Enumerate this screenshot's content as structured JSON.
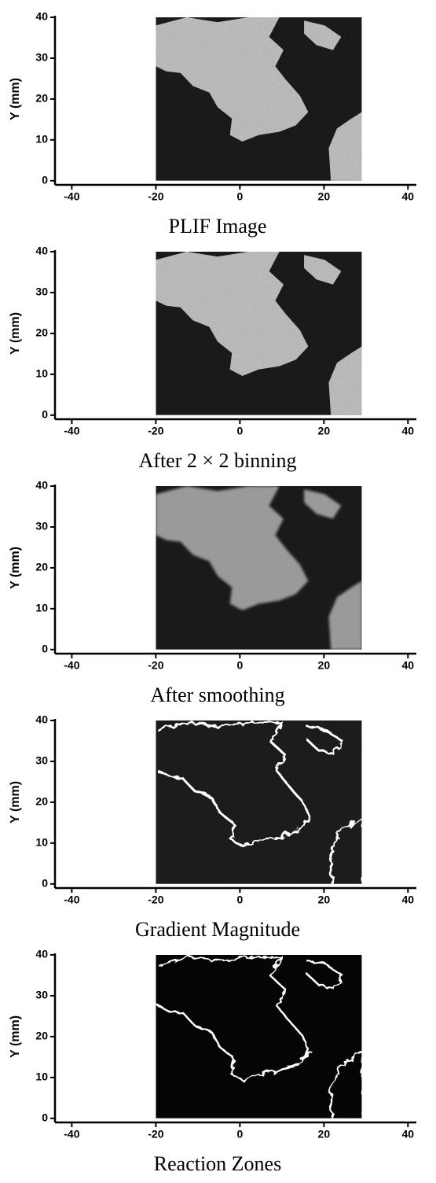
{
  "chart_data": [
    {
      "type": "image",
      "title": "PLIF Image",
      "y_label": "Y (mm)",
      "xlim": [
        -44,
        42
      ],
      "ylim": [
        -1,
        40
      ],
      "xticks": [
        -40,
        -20,
        0,
        20,
        40
      ],
      "yticks": [
        0,
        10,
        20,
        30,
        40
      ],
      "extent": [
        -20,
        29,
        0,
        40
      ],
      "style": "intensity"
    },
    {
      "type": "image",
      "title": "After 2 × 2 binning",
      "y_label": "Y (mm)",
      "xlim": [
        -44,
        42
      ],
      "ylim": [
        -1,
        40
      ],
      "xticks": [
        -40,
        -20,
        0,
        20,
        40
      ],
      "yticks": [
        0,
        10,
        20,
        30,
        40
      ],
      "extent": [
        -20,
        29,
        0,
        40
      ],
      "style": "intensity"
    },
    {
      "type": "image",
      "title": "After smoothing",
      "y_label": "Y (mm)",
      "xlim": [
        -44,
        42
      ],
      "ylim": [
        -1,
        40
      ],
      "xticks": [
        -40,
        -20,
        0,
        20,
        40
      ],
      "yticks": [
        0,
        10,
        20,
        30,
        40
      ],
      "extent": [
        -20,
        29,
        0,
        40
      ],
      "style": "smooth"
    },
    {
      "type": "image",
      "title": "Gradient Magnitude",
      "y_label": "Y (mm)",
      "xlim": [
        -44,
        42
      ],
      "ylim": [
        -1,
        40
      ],
      "xticks": [
        -40,
        -20,
        0,
        20,
        40
      ],
      "yticks": [
        0,
        10,
        20,
        30,
        40
      ],
      "extent": [
        -20,
        29,
        0,
        40
      ],
      "style": "gradient"
    },
    {
      "type": "image",
      "title": "Reaction Zones",
      "y_label": "Y (mm)",
      "xlim": [
        -44,
        42
      ],
      "ylim": [
        -1,
        40
      ],
      "xticks": [
        -40,
        -20,
        0,
        20,
        40
      ],
      "yticks": [
        0,
        10,
        20,
        30,
        40
      ],
      "extent": [
        -20,
        29,
        0,
        40
      ],
      "style": "zones"
    }
  ]
}
